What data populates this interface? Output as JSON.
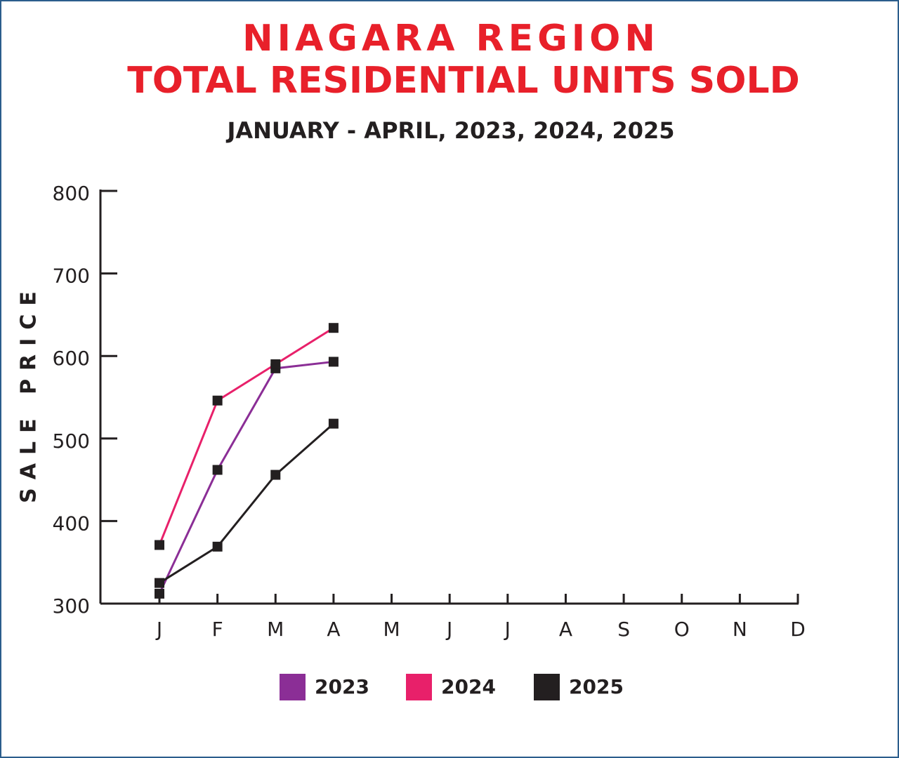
{
  "chart_data": {
    "type": "line",
    "title": "NIAGARA REGION",
    "subtitle": "TOTAL RESIDENTIAL UNITS SOLD",
    "period": "JANUARY - APRIL, 2023, 2024, 2025",
    "y_label": "SALE PRICE",
    "categories": [
      "J",
      "F",
      "M",
      "A",
      "M",
      "J",
      "J",
      "A",
      "S",
      "O",
      "N",
      "D"
    ],
    "series": [
      {
        "name": "2023",
        "color": "#8b2e96",
        "values": [
          312,
          462,
          585,
          593,
          null,
          null,
          null,
          null,
          null,
          null,
          null,
          null
        ]
      },
      {
        "name": "2024",
        "color": "#e8206a",
        "values": [
          371,
          546,
          590,
          634,
          null,
          null,
          null,
          null,
          null,
          null,
          null,
          null
        ]
      },
      {
        "name": "2025",
        "color": "#231f20",
        "values": [
          325,
          369,
          456,
          518,
          null,
          null,
          null,
          null,
          null,
          null,
          null,
          null
        ]
      }
    ],
    "ylim": [
      300,
      800
    ],
    "yticks": [
      300,
      400,
      500,
      600,
      700,
      800
    ],
    "marker_color": "#231f20",
    "title_color": "#e8202a",
    "legend": "bottom"
  }
}
